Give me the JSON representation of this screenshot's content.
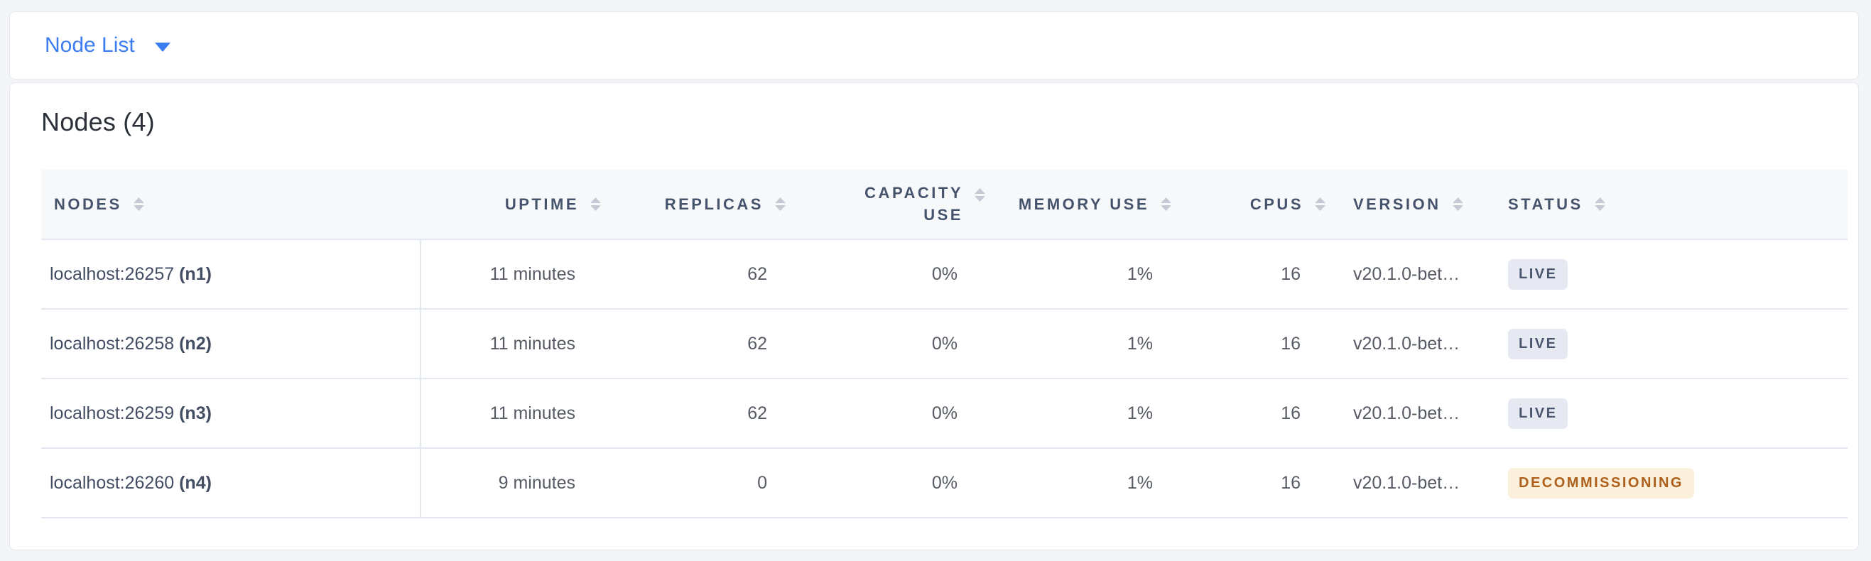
{
  "colors": {
    "accent_blue": "#3B7CF0",
    "page_background": "#F4F5F9",
    "status": {
      "live": {
        "bg": "#E6E9F2",
        "fg": "#4A566F"
      },
      "decommissioning": {
        "bg": "#FAF0DC",
        "fg": "#AD5F1C"
      }
    }
  },
  "view_selector": {
    "label": "Node List",
    "caret_icon": "caret-down-icon"
  },
  "summary": {
    "title": "Nodes (4)"
  },
  "table": {
    "columns": [
      {
        "key": "nodes",
        "label": "NODES",
        "align": "left",
        "sortable": true,
        "sort_icon": "sort-arrows-icon"
      },
      {
        "key": "uptime",
        "label": "UPTIME",
        "align": "right",
        "sortable": true,
        "sort_icon": "sort-arrows-icon"
      },
      {
        "key": "replicas",
        "label": "REPLICAS",
        "align": "right",
        "sortable": true,
        "sort_icon": "sort-arrows-icon"
      },
      {
        "key": "capacity_use",
        "label": "CAPACITY USE",
        "align": "right",
        "sortable": true,
        "sort_icon": "sort-arrows-icon"
      },
      {
        "key": "memory_use",
        "label": "MEMORY USE",
        "align": "right",
        "sortable": true,
        "sort_icon": "sort-arrows-icon"
      },
      {
        "key": "cpus",
        "label": "CPUS",
        "align": "right",
        "sortable": true,
        "sort_icon": "sort-arrows-icon"
      },
      {
        "key": "version",
        "label": "VERSION",
        "align": "left",
        "sortable": true,
        "sort_icon": "sort-arrows-icon"
      },
      {
        "key": "status",
        "label": "STATUS",
        "align": "left",
        "sortable": true,
        "sort_icon": "sort-arrows-icon"
      }
    ],
    "rows": [
      {
        "address": "localhost:26257",
        "node_id": "(n1)",
        "uptime": "11 minutes",
        "replicas": "62",
        "capacity_use": "0%",
        "memory_use": "1%",
        "cpus": "16",
        "version": "v20.1.0-bet…",
        "status": "LIVE",
        "status_type": "live"
      },
      {
        "address": "localhost:26258",
        "node_id": "(n2)",
        "uptime": "11 minutes",
        "replicas": "62",
        "capacity_use": "0%",
        "memory_use": "1%",
        "cpus": "16",
        "version": "v20.1.0-bet…",
        "status": "LIVE",
        "status_type": "live"
      },
      {
        "address": "localhost:26259",
        "node_id": "(n3)",
        "uptime": "11 minutes",
        "replicas": "62",
        "capacity_use": "0%",
        "memory_use": "1%",
        "cpus": "16",
        "version": "v20.1.0-bet…",
        "status": "LIVE",
        "status_type": "live"
      },
      {
        "address": "localhost:26260",
        "node_id": "(n4)",
        "uptime": "9 minutes",
        "replicas": "0",
        "capacity_use": "0%",
        "memory_use": "1%",
        "cpus": "16",
        "version": "v20.1.0-bet…",
        "status": "DECOMMISSIONING",
        "status_type": "decommissioning"
      }
    ]
  }
}
